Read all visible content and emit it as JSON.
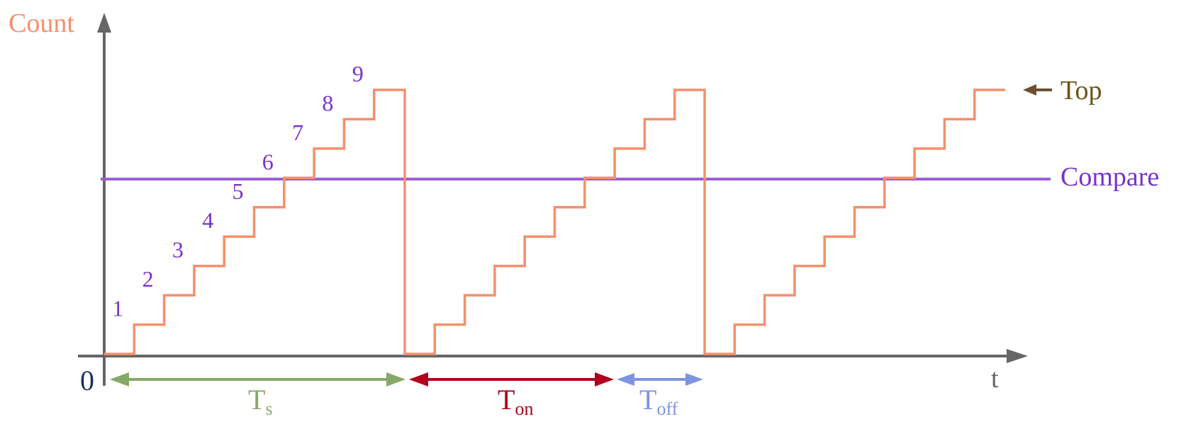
{
  "y_axis_label": "Count",
  "x_axis_label": "t",
  "origin_label": "0",
  "top_label": "Top",
  "compare_label": "Compare",
  "ts_label": {
    "main": "T",
    "sub": "s"
  },
  "ton_label": {
    "main": "T",
    "sub": "on"
  },
  "toff_label": {
    "main": "T",
    "sub": "off"
  },
  "step_labels": [
    "1",
    "2",
    "3",
    "4",
    "5",
    "6",
    "7",
    "8",
    "9"
  ],
  "colors": {
    "axis": "#666666",
    "counter": "#f4906c",
    "compare": "#9b5fd6",
    "step_label": "#7a33c8",
    "top_label": "#6b5316",
    "top_arrow": "#6e4f2f",
    "origin": "#1a2f5a",
    "ts": "#86a86a",
    "ton": "#b0001e",
    "toff": "#7e94e0",
    "y_label": "#f4906c"
  }
}
